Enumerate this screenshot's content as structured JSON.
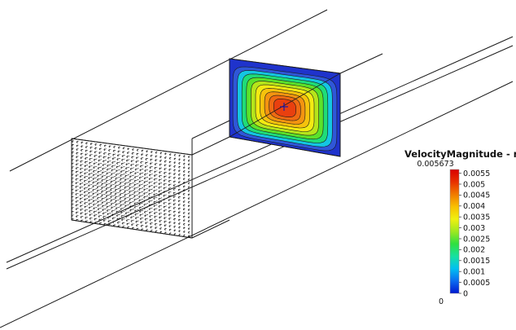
{
  "legend": {
    "title": "VelocityMagnitude - m/s",
    "max_label": "0.005673",
    "min_label": "0",
    "ticks": [
      "0.0055",
      "0.005",
      "0.0045",
      "0.004",
      "0.0035",
      "0.003",
      "0.0025",
      "0.002",
      "0.0015",
      "0.001",
      "0.0005",
      "0"
    ],
    "colors": [
      "#0018d0",
      "#0a6cf0",
      "#00c0f0",
      "#18e0a0",
      "#30e040",
      "#9fe820",
      "#f0f010",
      "#f8c000",
      "#f07a00",
      "#e83000",
      "#d80000"
    ]
  },
  "scene": {
    "contour_colors": [
      "#2f57d8",
      "#14c6e2",
      "#1fdc78",
      "#5be12a",
      "#b6e51a",
      "#f2ea12",
      "#f6c20c",
      "#f39410",
      "#ef6a12",
      "#e9400f"
    ]
  }
}
